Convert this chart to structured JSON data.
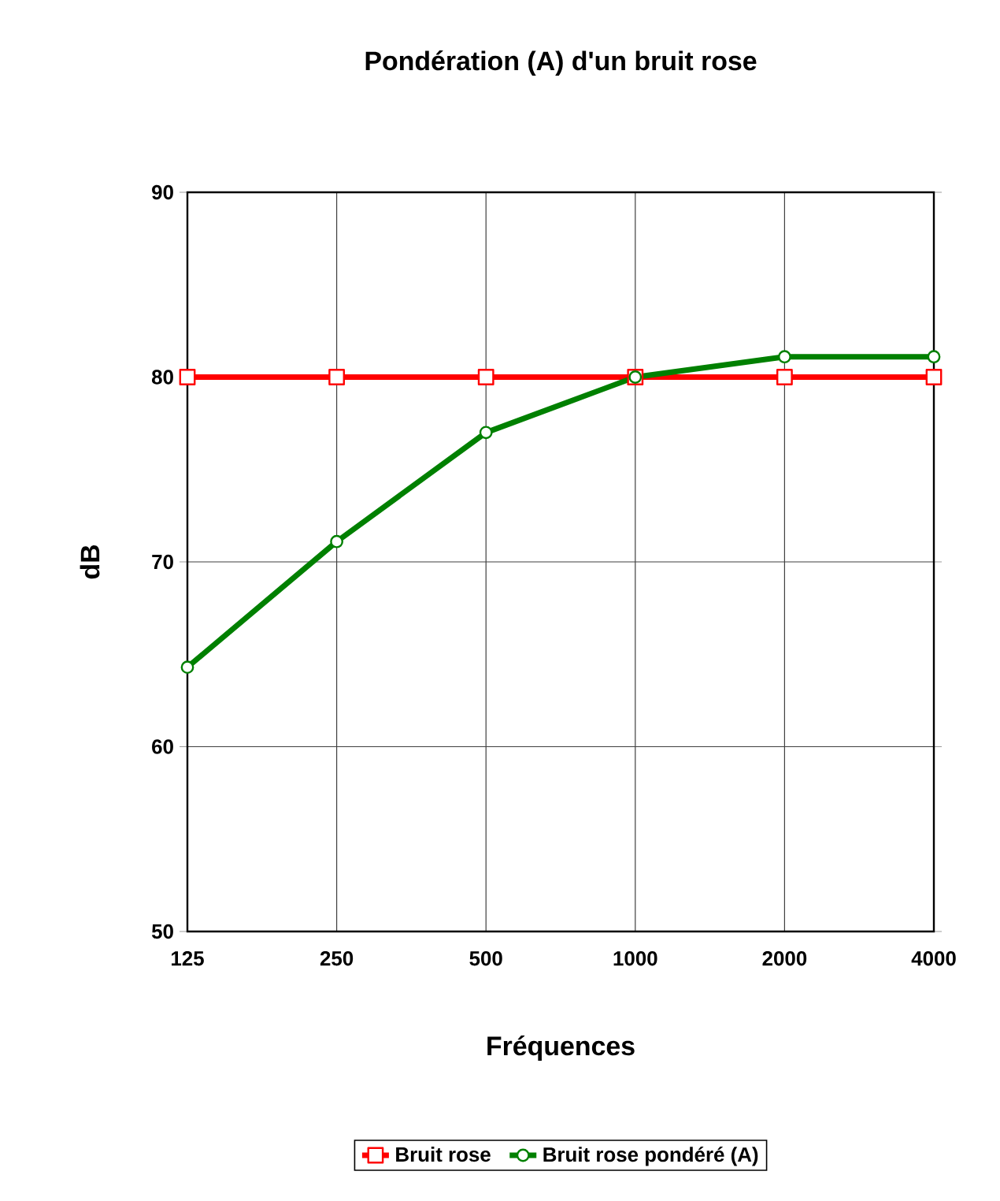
{
  "chart_data": {
    "type": "line",
    "title": "Pondération (A) d'un bruit rose",
    "xlabel": "Fréquences",
    "ylabel": "dB",
    "categories": [
      "125",
      "250",
      "500",
      "1000",
      "2000",
      "4000"
    ],
    "series": [
      {
        "name": "Bruit rose",
        "color": "#ff0000",
        "marker": "square",
        "values": [
          80,
          80,
          80,
          80,
          80,
          80
        ]
      },
      {
        "name": "Bruit rose pondéré (A)",
        "color": "#008000",
        "marker": "circle",
        "values": [
          64.3,
          71.1,
          77.0,
          80,
          81.1,
          81.1
        ]
      }
    ],
    "ylim": [
      50,
      90
    ],
    "yticks": [
      50,
      60,
      70,
      80,
      90
    ],
    "grid": true,
    "legend": "bottom"
  }
}
